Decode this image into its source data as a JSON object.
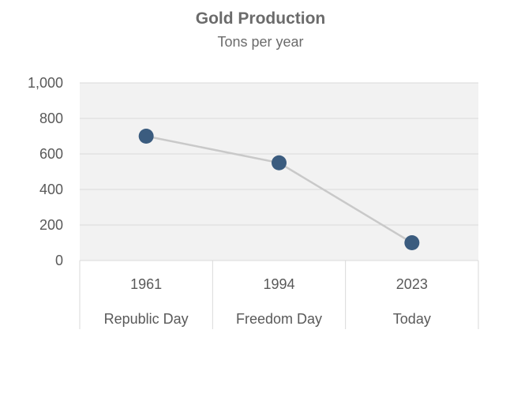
{
  "chart_data": {
    "type": "line",
    "title": "Gold Production",
    "subtitle": "Tons per year",
    "xlabel": "",
    "ylabel": "",
    "ylim": [
      0,
      1000
    ],
    "yticks": [
      "0",
      "200",
      "400",
      "600",
      "800",
      "1,000"
    ],
    "grid": true,
    "legend": "none",
    "categories": [
      {
        "year": "1961",
        "label": "Republic Day"
      },
      {
        "year": "1994",
        "label": "Freedom Day"
      },
      {
        "year": "2023",
        "label": "Today"
      }
    ],
    "series": [
      {
        "values": [
          700,
          550,
          100
        ]
      }
    ],
    "colors": {
      "plot_background": "#f2f2f2",
      "gridline": "#d9d9d9",
      "line": "#c9c9c9",
      "marker": "#3b5c7f",
      "category_divider": "#d9d9d9"
    }
  }
}
